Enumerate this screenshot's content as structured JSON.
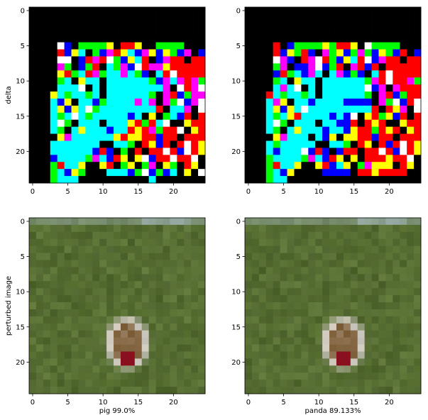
{
  "chart_data": [
    {
      "type": "heatmap",
      "panel": "top-left",
      "ylabel": "delta",
      "xlabel": "",
      "xticks": [
        "0",
        "5",
        "10",
        "15",
        "20"
      ],
      "yticks": [
        "0",
        "5",
        "10",
        "15",
        "20"
      ],
      "grid_size": [
        25,
        25
      ],
      "palette": {
        "K": "#000000",
        "W": "#ffffff",
        "R": "#ff0000",
        "G": "#00ff00",
        "B": "#0000ff",
        "C": "#00ffff",
        "M": "#ff00ff",
        "Y": "#ffff00"
      },
      "rows": [
        "KKKKKKKKKKKKKKKKKKKKKKKKK",
        "KKKKKKKKKKKKKKKKKKKKKKKKK",
        "KKKKKKKKKKKKKKKKKKKKKKKKK",
        "KKKKKKKKKKKKKKKKKKKKKKKKK",
        "KKKKKKKKKKKKKKKKKKKKKKKKK",
        "KKKKWBKGGGGYKRRYKKGGGGKKK",
        "KKKKRBYCKGBMRYCBMYBYGBMKB",
        "KKKKWWKBRMRWGBYCRKBMRRKRR",
        "KKKKMGKBGRKCGMBWRMMYRRRRR",
        "KKKKYRGCRMGCCMCGBKCRWRRRR",
        "KKKKGCKYCCKCCCCCCGBMCMRMG",
        "KKKKCCCWKCKCCCCCCCCMKWRMW",
        "KKKYCGCCGCKCCCCCCGKMRBGMM",
        "KKKCBYKCCBGCCCCMCMKMGWBMW",
        "KKKCYBYCWGCCCCCCCCRKCCMKW",
        "KKKCGCWCGCCCCCBCKYKGCBRKR",
        "KKKCWGKCCCKCCCYRGRCWKKYRR",
        "KKKCGKCYCCCBCCRYRMGRRWKYR",
        "KKKKYMCCCCCCYRYYRRBRRKRRR",
        "KKKCCCCCCCKKCCGKRYBRKRWRY",
        "KKKCCCCCCBRBKGKRKRRWRBWRY",
        "KKKBCCCCGMCBRYKYWBRRWRRWK",
        "KKKGRCCYKKYRKGYKGMKYGKRYK",
        "KKKGCBYGKKKCCCBGWBGBCKYKW",
        "KKKGCCCKKKKKKKKKKCKKKKKKK"
      ]
    },
    {
      "type": "heatmap",
      "panel": "top-right",
      "ylabel": "",
      "xlabel": "",
      "xticks": [
        "0",
        "5",
        "10",
        "15",
        "20"
      ],
      "yticks": [
        "0",
        "5",
        "10",
        "15",
        "20"
      ],
      "grid_size": [
        25,
        25
      ],
      "palette": {
        "K": "#000000",
        "W": "#ffffff",
        "R": "#ff0000",
        "G": "#00ff00",
        "B": "#0000ff",
        "C": "#00ffff",
        "M": "#ff00ff",
        "Y": "#ffff00"
      },
      "rows": [
        "KKKKKKKKKKKKKKKKKKKKKKKKK",
        "KKKKKKKKKKKKKKKKKKKKKKKKK",
        "KKKKKKKKKKKKKKKKKKKKKKKKK",
        "KKKKKKKKKKKKKKKKKKKKKKKKK",
        "KKKKKKKKKKKKKKKKKKKKKKKKK",
        "KKKKRKBGGGGYGRRYKWGGGGKKK",
        "KKKKRBYGRBKMGYBGMGBYGBRKB",
        "KKKKWMBKRMWRGBYCRWBMRRKRR",
        "KKKKGMKBBMWBGRKMRBRKRRRRR",
        "KKKKBRGCBMCKCMBGBKCRWRRRR",
        "KKKKGCKYCCKCCCCCCGMRWRRMG",
        "KKKKCMCWKCKCCCCCCWBMKMRRR",
        "KKKRCGCCGCKCCCCCCGKMRBGRR",
        "KKKCMYKCCBCCCCBBBBKMGWBRW",
        "KKKCYBYCWCCCCCCCCCRKRYMKW",
        "KKKCGCYRCCCCBCBWKYRGYBRKR",
        "KKKCWGKCCCKCCBBRKRYRKKYRR",
        "KKKCGKCYCCCBCCBYRRGRYRKYR",
        "KKKKYMCCCKCBYKYYRRBRRKRRR",
        "KKKCGCCCCCKKCCGKRYKRBRWRY",
        "KKKCBCCCWBRBKBRRKRRWRBWRY",
        "KKKGCCCCGMCBRYKYKRRRYRRWK",
        "KKKGRCCYKKYRBCYKGMYYYKRYK",
        "KKKGCBYKKKKBBBBKRRYRRRRKK",
        "KKKGCCKKKKKKKKKKKKKKKKKKK"
      ]
    },
    {
      "type": "heatmap",
      "panel": "bottom-left",
      "ylabel": "perturbed image",
      "xlabel": "pig  99.0%",
      "xticks": [
        "0",
        "5",
        "10",
        "15",
        "20"
      ],
      "yticks": [
        "0",
        "5",
        "10",
        "15",
        "20"
      ],
      "grid_size": [
        25,
        25
      ],
      "image": "grass background with a round brown-red figure at lower center",
      "colors": {
        "grass": "#556b31",
        "grass_dark": "#495e2a",
        "grass_light": "#67803d",
        "sky": "#a9bcc7",
        "figure_white": "#d8d0c4",
        "figure_brown": "#7a5a34",
        "figure_red": "#8a1020",
        "figure_grey": "#7c8890"
      }
    },
    {
      "type": "heatmap",
      "panel": "bottom-right",
      "ylabel": "",
      "xlabel": "panda  89.133%",
      "xticks": [
        "0",
        "5",
        "10",
        "15",
        "20"
      ],
      "yticks": [
        "0",
        "5",
        "10",
        "15",
        "20"
      ],
      "grid_size": [
        25,
        25
      ],
      "image": "grass background with a round brown-red figure at lower center",
      "colors": {
        "grass": "#556b31",
        "grass_dark": "#495e2a",
        "grass_light": "#67803d",
        "sky": "#a9bcc7",
        "figure_white": "#d8d0c4",
        "figure_brown": "#7a5a34",
        "figure_red": "#8a1020",
        "figure_grey": "#7c8890"
      }
    }
  ]
}
